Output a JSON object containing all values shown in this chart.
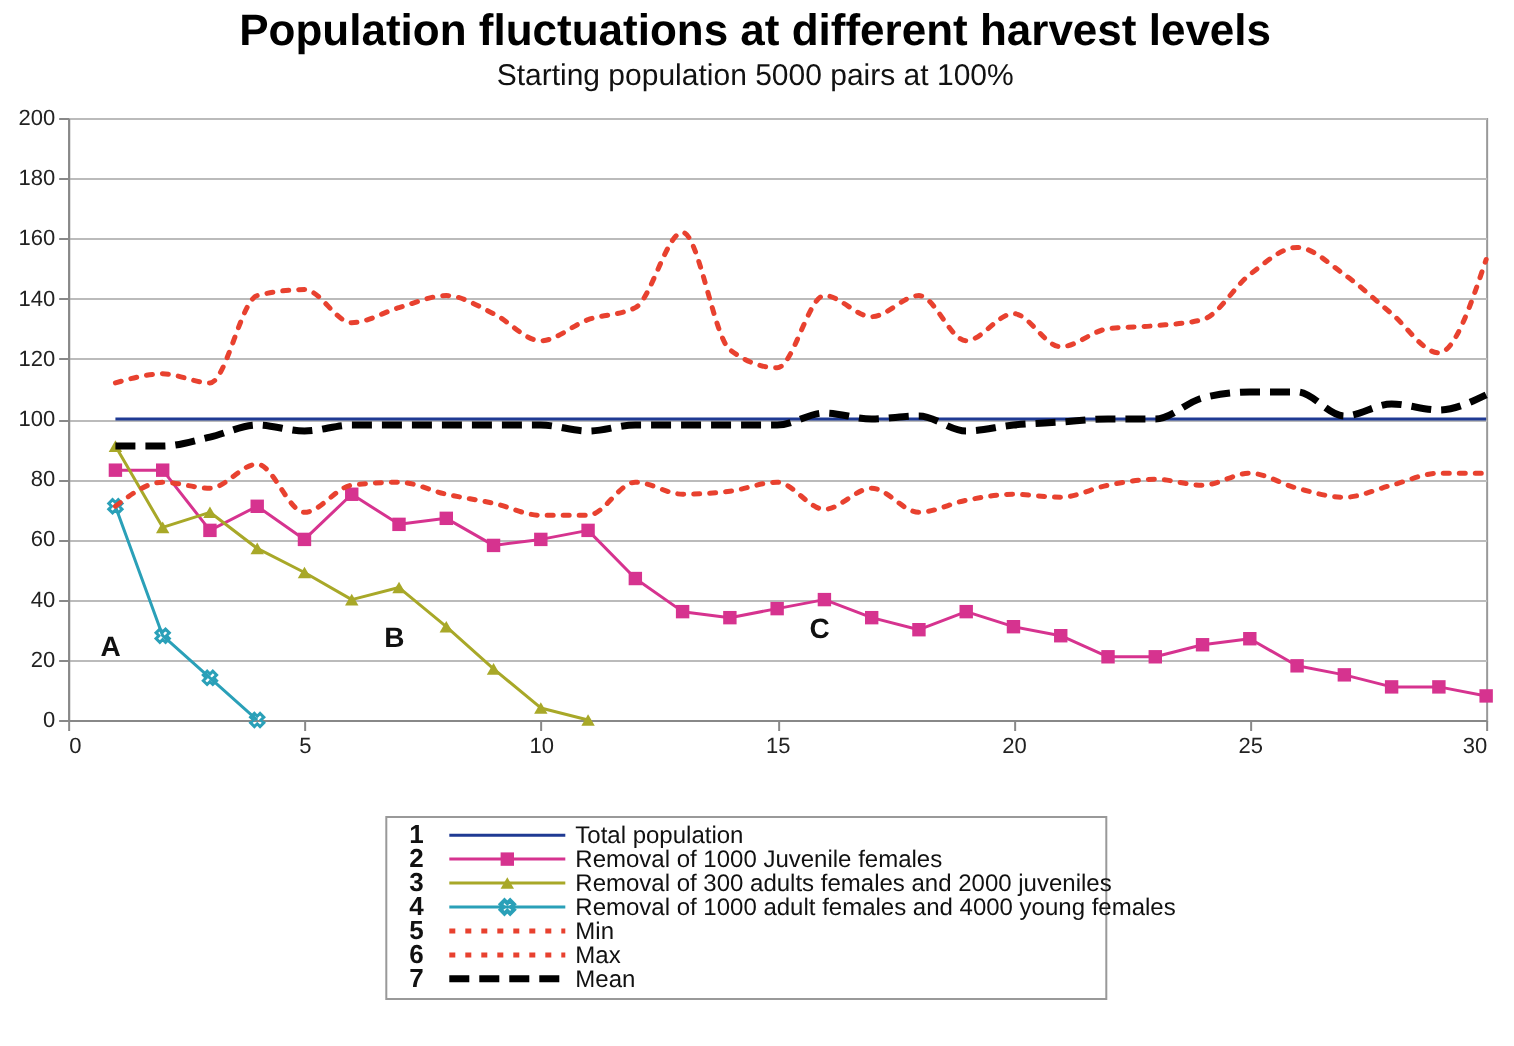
{
  "chart_data": {
    "type": "line",
    "title": "Population fluctuations at different harvest levels",
    "subtitle": "Starting population 5000 pairs at 100%",
    "x": [
      1,
      2,
      3,
      4,
      5,
      6,
      7,
      8,
      9,
      10,
      11,
      12,
      13,
      14,
      15,
      16,
      17,
      18,
      19,
      20,
      21,
      22,
      23,
      24,
      25,
      26,
      27,
      28,
      29,
      30
    ],
    "series": [
      {
        "name": "Total population",
        "color": "#1f3a93",
        "line_style": "solid",
        "marker": "none",
        "values": [
          100,
          100,
          100,
          100,
          100,
          100,
          100,
          100,
          100,
          100,
          100,
          100,
          100,
          100,
          100,
          100,
          100,
          100,
          100,
          100,
          100,
          100,
          100,
          100,
          100,
          100,
          100,
          100,
          100,
          100
        ]
      },
      {
        "name": "Removal of 1000 Juvenile females",
        "color": "#d6338f",
        "line_style": "solid",
        "marker": "square",
        "values": [
          83,
          83,
          63,
          71,
          60,
          75,
          65,
          67,
          58,
          60,
          63,
          47,
          36,
          34,
          37,
          40,
          34,
          30,
          36,
          31,
          28,
          21,
          21,
          25,
          27,
          18,
          15,
          11,
          11,
          8
        ]
      },
      {
        "name": "Removal of 300 adults females and 2000 juveniles",
        "color": "#a8a828",
        "line_style": "solid",
        "marker": "triangle",
        "x": [
          1,
          2,
          3,
          4,
          5,
          6,
          7,
          8,
          9,
          10,
          11
        ],
        "values": [
          91,
          64,
          69,
          57,
          49,
          40,
          44,
          31,
          17,
          4,
          0
        ]
      },
      {
        "name": "Removal of 1000 adult females and 4000 young females",
        "color": "#2aa0b8",
        "line_style": "solid",
        "marker": "cross",
        "x": [
          1,
          2,
          3,
          4
        ],
        "values": [
          71,
          28,
          14,
          0
        ]
      },
      {
        "name": "Min",
        "color": "#e8412f",
        "line_style": "dotted",
        "marker": "none",
        "values": [
          71,
          79,
          77,
          85,
          69,
          78,
          79,
          75,
          72,
          68,
          68,
          79,
          75,
          76,
          79,
          70,
          77,
          69,
          73,
          75,
          74,
          78,
          80,
          78,
          82,
          77,
          74,
          78,
          82,
          82
        ]
      },
      {
        "name": "Max",
        "color": "#e8412f",
        "line_style": "dotted",
        "marker": "none",
        "values": [
          112,
          115,
          112,
          141,
          143,
          132,
          137,
          141,
          135,
          126,
          133,
          137,
          162,
          123,
          117,
          141,
          134,
          141,
          126,
          135,
          124,
          130,
          131,
          133,
          148,
          157,
          148,
          135,
          122,
          153
        ]
      },
      {
        "name": "Mean",
        "color": "#000000",
        "line_style": "dashed",
        "marker": "none",
        "values": [
          91,
          91,
          94,
          98,
          96,
          98,
          98,
          98,
          98,
          98,
          96,
          98,
          98,
          98,
          98,
          102,
          100,
          101,
          96,
          98,
          99,
          100,
          100,
          107,
          109,
          109,
          101,
          105,
          103,
          108
        ]
      }
    ],
    "xlim": [
      0,
      30
    ],
    "xticks": [
      0,
      5,
      10,
      15,
      20,
      25,
      30
    ],
    "ylim": [
      0,
      200
    ],
    "yticks": [
      0,
      20,
      40,
      60,
      80,
      100,
      120,
      140,
      160,
      180,
      200
    ],
    "grid": "y",
    "legend": "bottom",
    "annotations": [
      {
        "text": "A",
        "x": 2,
        "y": 28
      },
      {
        "text": "B",
        "x": 8,
        "y": 31
      },
      {
        "text": "C",
        "x": 17,
        "y": 34
      },
      "1",
      "2",
      "3",
      "4",
      "5",
      "6",
      "7"
    ]
  }
}
